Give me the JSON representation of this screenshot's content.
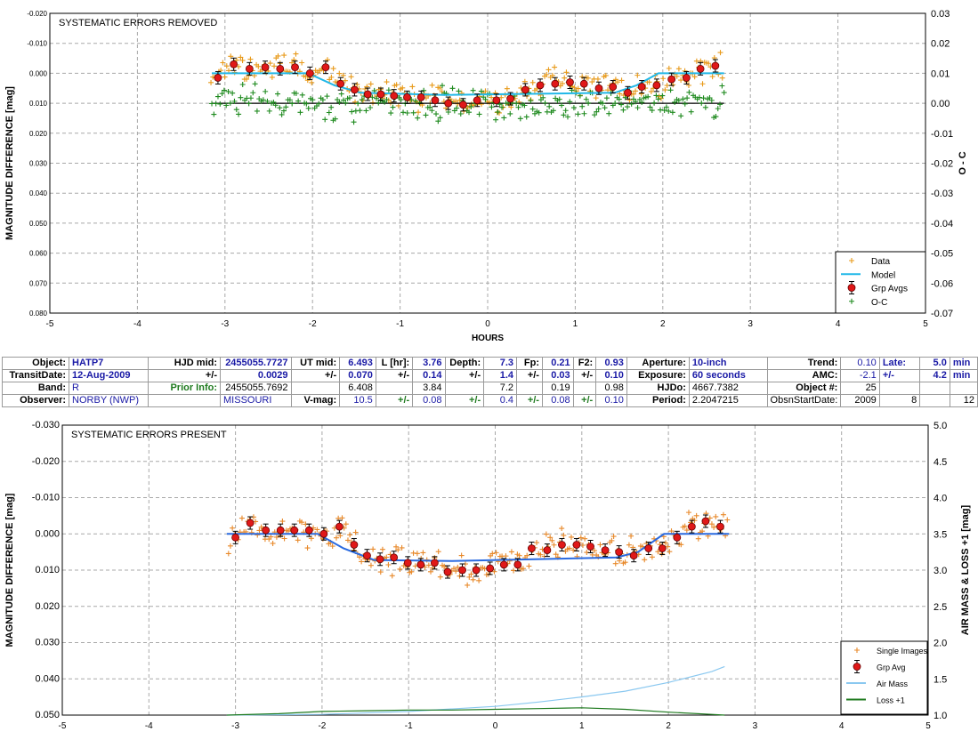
{
  "chart_data": [
    {
      "type": "scatter",
      "title": "SYSTEMATIC ERRORS REMOVED",
      "xlabel": "HOURS",
      "ylabel": "MAGNITUDE DIFFERENCE [mag]",
      "y2label": "O - C",
      "xlim": [
        -5,
        5
      ],
      "ylim": [
        -0.02,
        0.08
      ],
      "y_inverted": true,
      "y2lim": [
        -0.07,
        0.03
      ],
      "xticks": [
        "-5",
        "-4",
        "-3",
        "-2",
        "-1",
        "0",
        "1",
        "2",
        "3",
        "4",
        "5"
      ],
      "yticks": [
        "-0.020",
        "-0.010",
        "0.000",
        "0.010",
        "0.020",
        "0.030",
        "0.040",
        "0.050",
        "0.060",
        "0.070",
        "0.080"
      ],
      "y2ticks": [
        "-0.07",
        "-0.06",
        "-0.05",
        "-0.04",
        "-0.03",
        "-0.02",
        "-0.01",
        "0.00",
        "0.01",
        "0.02",
        "0.03"
      ],
      "grid": true,
      "legend_position": "bottom-right",
      "legend": [
        "Data",
        "Model",
        "Grp Avgs",
        "O-C"
      ],
      "series": [
        {
          "name": "Model",
          "color": "#22b8e8",
          "style": "line",
          "x": [
            -3.15,
            -2.05,
            -1.75,
            -1.45,
            -0.5,
            1.45,
            1.7,
            1.95,
            2.7
          ],
          "y": [
            0.0,
            0.0,
            0.004,
            0.0065,
            0.0072,
            0.0065,
            0.004,
            0.0,
            0.0
          ]
        },
        {
          "name": "Grp Avgs",
          "color": "#e02020",
          "style": "marker",
          "x": [
            -3.08,
            -2.9,
            -2.72,
            -2.54,
            -2.37,
            -2.2,
            -2.03,
            -1.85,
            -1.68,
            -1.52,
            -1.37,
            -1.22,
            -1.07,
            -0.92,
            -0.76,
            -0.6,
            -0.45,
            -0.28,
            -0.12,
            0.1,
            0.26,
            0.43,
            0.6,
            0.77,
            0.94,
            1.1,
            1.27,
            1.43,
            1.6,
            1.76,
            1.93,
            2.1,
            2.27,
            2.43,
            2.6
          ],
          "y": [
            0.0015,
            -0.003,
            -0.0015,
            -0.002,
            -0.0015,
            -0.002,
            0.0,
            -0.002,
            0.0035,
            0.0055,
            0.007,
            0.007,
            0.0075,
            0.008,
            0.008,
            0.009,
            0.01,
            0.0105,
            0.009,
            0.009,
            0.0085,
            0.0055,
            0.004,
            0.0035,
            0.003,
            0.0035,
            0.005,
            0.0045,
            0.0065,
            0.0045,
            0.004,
            0.002,
            0.0015,
            -0.0015,
            -0.0025
          ]
        },
        {
          "name": "Data",
          "color": "#e89a1a",
          "style": "plus",
          "scatter_around": "Grp Avgs"
        },
        {
          "name": "O-C",
          "color": "#1e8a1e",
          "style": "plus",
          "center": 0.0
        }
      ]
    },
    {
      "type": "scatter",
      "title": "SYSTEMATIC ERRORS PRESENT",
      "xlabel": "",
      "ylabel": "MAGNITUDE DIFFERENCE [mag]",
      "y2label": "AIR MASS & LOSS +1 [mag]",
      "xlim": [
        -5,
        5
      ],
      "ylim": [
        -0.03,
        0.05
      ],
      "y_inverted": true,
      "y2lim": [
        1.0,
        5.0
      ],
      "xticks": [
        "-5",
        "-4",
        "-3",
        "-2",
        "-1",
        "0",
        "1",
        "2",
        "3",
        "4",
        "5"
      ],
      "yticks": [
        "-0.030",
        "-0.020",
        "-0.010",
        "0.000",
        "0.010",
        "0.020",
        "0.030",
        "0.040",
        "0.050"
      ],
      "y2ticks": [
        "1.0",
        "1.5",
        "2.0",
        "2.5",
        "3.0",
        "3.5",
        "4.0",
        "4.5",
        "5.0"
      ],
      "grid": true,
      "legend_position": "bottom-right",
      "legend": [
        "Single Images",
        "Grp Avg",
        "Air Mass",
        "Loss +1"
      ],
      "series": [
        {
          "name": "Model",
          "color": "#2a6ae0",
          "style": "line",
          "x": [
            -3.1,
            -2.05,
            -1.75,
            -1.4,
            -0.5,
            1.4,
            1.65,
            1.95,
            2.7
          ],
          "y": [
            0.0,
            0.0,
            0.004,
            0.0072,
            0.0075,
            0.0065,
            0.005,
            0.0,
            0.0
          ]
        },
        {
          "name": "Grp Avg",
          "color": "#e02020",
          "style": "marker",
          "x": [
            -3.0,
            -2.83,
            -2.65,
            -2.48,
            -2.32,
            -2.15,
            -1.98,
            -1.8,
            -1.63,
            -1.48,
            -1.33,
            -1.17,
            -1.01,
            -0.86,
            -0.7,
            -0.55,
            -0.38,
            -0.22,
            -0.06,
            0.1,
            0.26,
            0.42,
            0.6,
            0.77,
            0.94,
            1.1,
            1.27,
            1.43,
            1.6,
            1.77,
            1.93,
            2.1,
            2.27,
            2.43,
            2.6
          ],
          "y": [
            0.001,
            -0.003,
            -0.001,
            -0.001,
            -0.001,
            -0.001,
            0.0,
            -0.002,
            0.003,
            0.006,
            0.007,
            0.0065,
            0.008,
            0.0085,
            0.008,
            0.0105,
            0.01,
            0.01,
            0.0095,
            0.0085,
            0.0085,
            0.004,
            0.0045,
            0.003,
            0.003,
            0.0035,
            0.0045,
            0.005,
            0.006,
            0.004,
            0.004,
            0.001,
            -0.002,
            -0.0035,
            -0.002
          ]
        },
        {
          "name": "Single Images",
          "color": "#e8892a",
          "style": "plus",
          "scatter_around": "Grp Avg"
        },
        {
          "name": "Air Mass",
          "color": "#8ac8f0",
          "style": "line",
          "axis": "y2",
          "x": [
            -3.1,
            -2.0,
            -1.0,
            0.0,
            0.5,
            1.0,
            1.5,
            2.0,
            2.5,
            2.65
          ],
          "y": [
            1.0,
            1.01,
            1.05,
            1.12,
            1.18,
            1.25,
            1.33,
            1.45,
            1.6,
            1.67
          ]
        },
        {
          "name": "Loss +1",
          "color": "#1e7a1e",
          "style": "line",
          "axis": "y2",
          "x": [
            -3.1,
            -2.5,
            -2.0,
            -1.5,
            -1.0,
            -0.5,
            0.0,
            0.5,
            1.0,
            1.5,
            2.0,
            2.5,
            2.65
          ],
          "y": [
            1.0,
            1.02,
            1.05,
            1.06,
            1.07,
            1.07,
            1.08,
            1.09,
            1.1,
            1.08,
            1.04,
            1.01,
            1.0
          ]
        }
      ]
    }
  ],
  "table": {
    "rows": [
      [
        {
          "t": "Object:",
          "c": "lab"
        },
        {
          "t": "HATP7",
          "c": "val bold"
        },
        {
          "t": "HJD mid:",
          "c": "lab"
        },
        {
          "t": "2455055.7727",
          "c": "num bold"
        },
        {
          "t": "UT mid:",
          "c": "lab"
        },
        {
          "t": "6.493",
          "c": "num bold"
        },
        {
          "t": "L [hr]:",
          "c": "lab"
        },
        {
          "t": "3.76",
          "c": "num bold"
        },
        {
          "t": "Depth:",
          "c": "lab"
        },
        {
          "t": "7.3",
          "c": "num bold"
        },
        {
          "t": "Fp:",
          "c": "lab"
        },
        {
          "t": "0.21",
          "c": "num bold"
        },
        {
          "t": "F2:",
          "c": "lab"
        },
        {
          "t": "0.93",
          "c": "num bold"
        },
        {
          "t": "Aperture:",
          "c": "lab"
        },
        {
          "t": "10-inch",
          "c": "val bold"
        },
        {
          "t": "Trend:",
          "c": "lab"
        },
        {
          "t": "0.10",
          "c": "num"
        },
        {
          "t": "Late:",
          "c": "lab val"
        },
        {
          "t": "5.0",
          "c": "num bold"
        },
        {
          "t": "min",
          "c": "val bold"
        }
      ],
      [
        {
          "t": "TransitDate:",
          "c": "lab"
        },
        {
          "t": "12-Aug-2009",
          "c": "val bold"
        },
        {
          "t": "+/-",
          "c": "lab"
        },
        {
          "t": "0.0029",
          "c": "num bold"
        },
        {
          "t": "+/-",
          "c": "lab"
        },
        {
          "t": "0.070",
          "c": "num bold"
        },
        {
          "t": "+/-",
          "c": "lab"
        },
        {
          "t": "0.14",
          "c": "num bold"
        },
        {
          "t": "+/-",
          "c": "lab"
        },
        {
          "t": "1.4",
          "c": "num bold"
        },
        {
          "t": "+/-",
          "c": "lab"
        },
        {
          "t": "0.03",
          "c": "num bold"
        },
        {
          "t": "+/-",
          "c": "lab"
        },
        {
          "t": "0.10",
          "c": "num bold"
        },
        {
          "t": "Exposure:",
          "c": "lab"
        },
        {
          "t": "60 seconds",
          "c": "val bold"
        },
        {
          "t": "AMC:",
          "c": "lab"
        },
        {
          "t": "-2.1",
          "c": "num"
        },
        {
          "t": "+/-",
          "c": "lab val"
        },
        {
          "t": "4.2",
          "c": "num bold"
        },
        {
          "t": "min",
          "c": "val bold"
        }
      ],
      [
        {
          "t": "Band:",
          "c": "lab"
        },
        {
          "t": "R",
          "c": "val"
        },
        {
          "t": "Prior Info:",
          "c": "lab green"
        },
        {
          "t": "2455055.7692",
          "c": "num dark"
        },
        {
          "t": "",
          "c": "lab"
        },
        {
          "t": "6.408",
          "c": "num dark"
        },
        {
          "t": "",
          "c": "lab"
        },
        {
          "t": "3.84",
          "c": "num dark"
        },
        {
          "t": "",
          "c": "lab"
        },
        {
          "t": "7.2",
          "c": "num dark"
        },
        {
          "t": "",
          "c": "lab"
        },
        {
          "t": "0.19",
          "c": "num dark"
        },
        {
          "t": "",
          "c": "lab"
        },
        {
          "t": "0.98",
          "c": "num dark"
        },
        {
          "t": "HJDo:",
          "c": "lab"
        },
        {
          "t": "4667.7382",
          "c": "val dark"
        },
        {
          "t": "Object #:",
          "c": "lab"
        },
        {
          "t": "25",
          "c": "num dark"
        },
        {
          "t": "",
          "c": "lab"
        },
        {
          "t": "",
          "c": "num"
        },
        {
          "t": "",
          "c": "val"
        }
      ],
      [
        {
          "t": "Observer:",
          "c": "lab"
        },
        {
          "t": "NORBY (NWP)",
          "c": "val"
        },
        {
          "t": "",
          "c": "lab"
        },
        {
          "t": "MISSOURI",
          "c": "val"
        },
        {
          "t": "V-mag:",
          "c": "lab"
        },
        {
          "t": "10.5",
          "c": "num"
        },
        {
          "t": "+/-",
          "c": "lab green"
        },
        {
          "t": "0.08",
          "c": "num"
        },
        {
          "t": "+/-",
          "c": "lab green"
        },
        {
          "t": "0.4",
          "c": "num"
        },
        {
          "t": "+/-",
          "c": "lab green"
        },
        {
          "t": "0.08",
          "c": "num"
        },
        {
          "t": "+/-",
          "c": "lab green"
        },
        {
          "t": "0.10",
          "c": "num"
        },
        {
          "t": "Period:",
          "c": "lab"
        },
        {
          "t": "2.2047215",
          "c": "val dark"
        },
        {
          "t": "ObsnStartDate:",
          "c": "lab dark"
        },
        {
          "t": "2009",
          "c": "num dark"
        },
        {
          "t": "8",
          "c": "num dark"
        },
        {
          "t": "",
          "c": "num"
        },
        {
          "t": "12",
          "c": "num dark"
        }
      ]
    ]
  }
}
